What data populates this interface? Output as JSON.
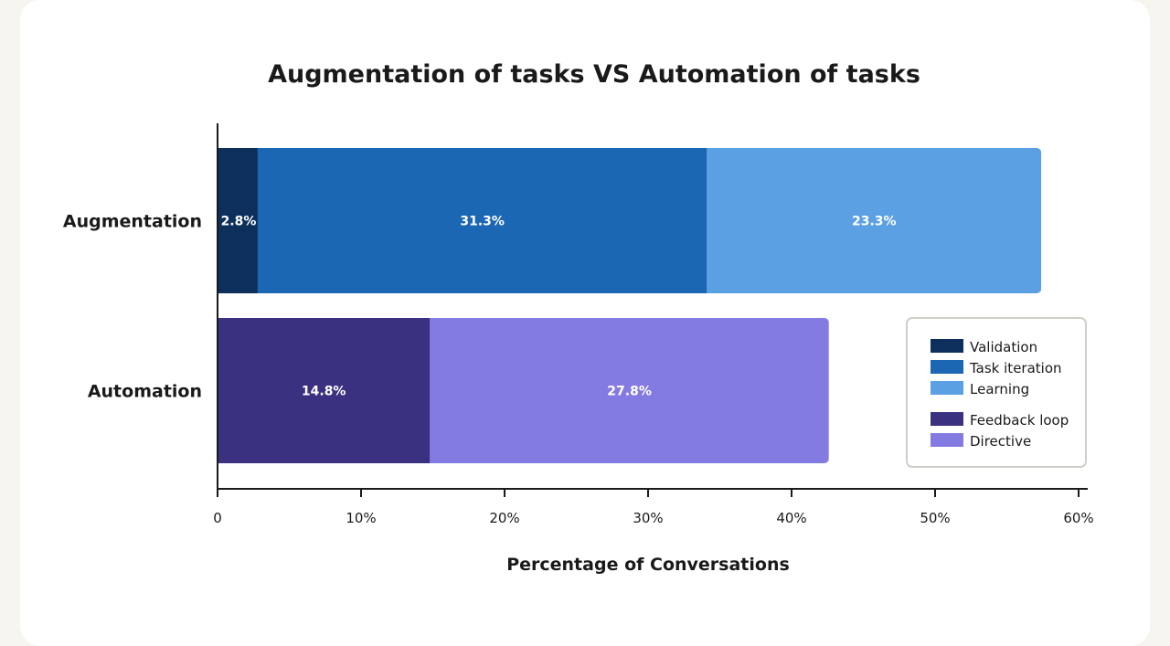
{
  "chart_data": {
    "type": "bar",
    "orientation": "horizontal",
    "stacked": true,
    "title": "Augmentation of tasks VS Automation of tasks",
    "xlabel": "Percentage of Conversations",
    "ylabel": "",
    "xlim": [
      0,
      60
    ],
    "x_ticks": [
      "0",
      "10%",
      "20%",
      "30%",
      "40%",
      "50%",
      "60%"
    ],
    "x_tick_values": [
      0,
      10,
      20,
      30,
      40,
      50,
      60
    ],
    "grid": false,
    "legend_position": "bottom-right",
    "categories": [
      "Augmentation",
      "Automation"
    ],
    "series": [
      {
        "name": "Validation",
        "category": "Augmentation",
        "value": 2.8,
        "label": "2.8%",
        "color": "#0c2f5c"
      },
      {
        "name": "Task iteration",
        "category": "Augmentation",
        "value": 31.3,
        "label": "31.3%",
        "color": "#1c67b3"
      },
      {
        "name": "Learning",
        "category": "Augmentation",
        "value": 23.3,
        "label": "23.3%",
        "color": "#5aa0e3"
      },
      {
        "name": "Feedback loop",
        "category": "Automation",
        "value": 14.8,
        "label": "14.8%",
        "color": "#3a3180"
      },
      {
        "name": "Directive",
        "category": "Automation",
        "value": 27.8,
        "label": "27.8%",
        "color": "#847be2"
      }
    ]
  }
}
